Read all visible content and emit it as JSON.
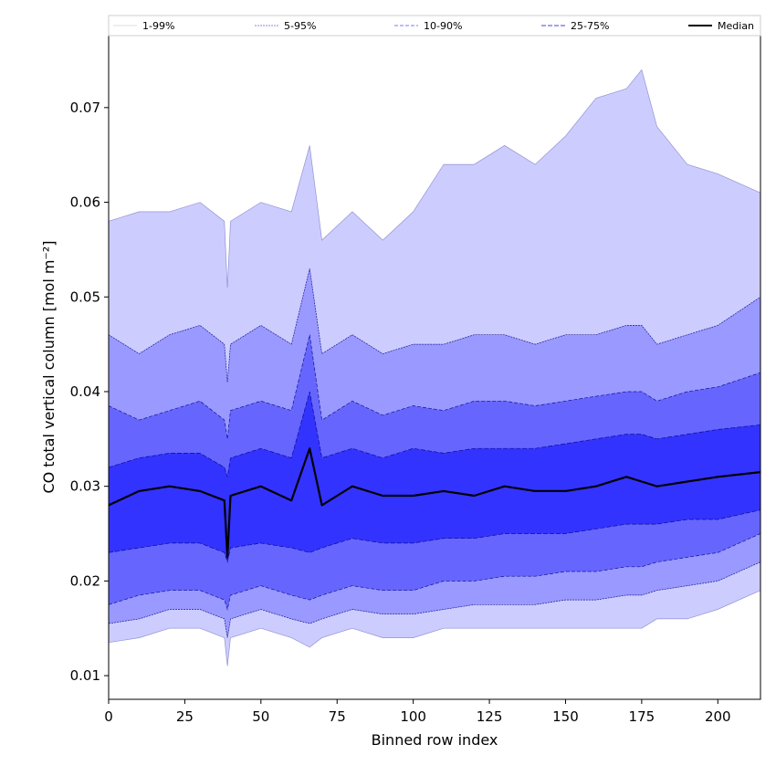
{
  "chart_data": {
    "type": "area",
    "title": "",
    "xlabel": "Binned row index",
    "ylabel": "CO total vertical column [mol m⁻²]",
    "xlim": [
      0,
      214
    ],
    "ylim": [
      0.0075,
      0.0777
    ],
    "x_ticks": [
      0,
      25,
      50,
      75,
      100,
      125,
      150,
      175,
      200
    ],
    "y_ticks": [
      0.01,
      0.02,
      0.03,
      0.04,
      0.05,
      0.06,
      0.07
    ],
    "x_tick_labels": [
      "0",
      "25",
      "50",
      "75",
      "100",
      "125",
      "150",
      "175",
      "200"
    ],
    "y_tick_labels": [
      "0.01",
      "0.02",
      "0.03",
      "0.04",
      "0.05",
      "0.06",
      "0.07"
    ],
    "grid": false,
    "legend_position": "top, above plot",
    "x_knots": [
      0,
      10,
      20,
      30,
      38,
      39,
      40,
      50,
      60,
      66,
      70,
      80,
      90,
      100,
      110,
      120,
      130,
      140,
      150,
      160,
      170,
      175,
      180,
      190,
      200,
      214
    ],
    "bands": [
      {
        "name": "1-99%",
        "color": "#ccccff",
        "line_color": "#000080",
        "lower": [
          0.0135,
          0.014,
          0.015,
          0.015,
          0.014,
          0.011,
          0.014,
          0.015,
          0.014,
          0.013,
          0.014,
          0.015,
          0.014,
          0.014,
          0.015,
          0.015,
          0.015,
          0.015,
          0.015,
          0.015,
          0.015,
          0.015,
          0.016,
          0.016,
          0.017,
          0.019
        ],
        "upper": [
          0.058,
          0.059,
          0.059,
          0.06,
          0.058,
          0.051,
          0.058,
          0.06,
          0.059,
          0.066,
          0.056,
          0.059,
          0.056,
          0.059,
          0.064,
          0.064,
          0.066,
          0.064,
          0.067,
          0.071,
          0.072,
          0.074,
          0.068,
          0.064,
          0.063,
          0.061
        ]
      },
      {
        "name": "5-95%",
        "color": "#9999ff",
        "line_color": "#000080",
        "lower": [
          0.0155,
          0.016,
          0.017,
          0.017,
          0.016,
          0.014,
          0.016,
          0.017,
          0.016,
          0.0155,
          0.016,
          0.017,
          0.0165,
          0.0165,
          0.017,
          0.0175,
          0.0175,
          0.0175,
          0.018,
          0.018,
          0.0185,
          0.0185,
          0.019,
          0.0195,
          0.02,
          0.022
        ],
        "upper": [
          0.046,
          0.044,
          0.046,
          0.047,
          0.045,
          0.041,
          0.045,
          0.047,
          0.045,
          0.053,
          0.044,
          0.046,
          0.044,
          0.045,
          0.045,
          0.046,
          0.046,
          0.045,
          0.046,
          0.046,
          0.047,
          0.047,
          0.045,
          0.046,
          0.047,
          0.05
        ]
      },
      {
        "name": "10-90%",
        "color": "#6666ff",
        "line_color": "#000080",
        "lower": [
          0.0175,
          0.0185,
          0.019,
          0.019,
          0.018,
          0.017,
          0.0185,
          0.0195,
          0.0185,
          0.018,
          0.0185,
          0.0195,
          0.019,
          0.019,
          0.02,
          0.02,
          0.0205,
          0.0205,
          0.021,
          0.021,
          0.0215,
          0.0215,
          0.022,
          0.0225,
          0.023,
          0.025
        ],
        "upper": [
          0.0385,
          0.037,
          0.038,
          0.039,
          0.037,
          0.035,
          0.038,
          0.039,
          0.038,
          0.046,
          0.037,
          0.039,
          0.0375,
          0.0385,
          0.038,
          0.039,
          0.039,
          0.0385,
          0.039,
          0.0395,
          0.04,
          0.04,
          0.039,
          0.04,
          0.0405,
          0.042
        ]
      },
      {
        "name": "25-75%",
        "color": "#3333ff",
        "line_color": "#000080",
        "lower": [
          0.023,
          0.0235,
          0.024,
          0.024,
          0.023,
          0.022,
          0.0235,
          0.024,
          0.0235,
          0.023,
          0.0235,
          0.0245,
          0.024,
          0.024,
          0.0245,
          0.0245,
          0.025,
          0.025,
          0.025,
          0.0255,
          0.026,
          0.026,
          0.026,
          0.0265,
          0.0265,
          0.0275
        ],
        "upper": [
          0.032,
          0.033,
          0.0335,
          0.0335,
          0.032,
          0.031,
          0.033,
          0.034,
          0.033,
          0.04,
          0.033,
          0.034,
          0.033,
          0.034,
          0.0335,
          0.034,
          0.034,
          0.034,
          0.0345,
          0.035,
          0.0355,
          0.0355,
          0.035,
          0.0355,
          0.036,
          0.0365
        ]
      }
    ],
    "median": {
      "name": "Median",
      "color": "#000000",
      "values": [
        0.028,
        0.0295,
        0.03,
        0.0295,
        0.0285,
        0.0225,
        0.029,
        0.03,
        0.0285,
        0.034,
        0.028,
        0.03,
        0.029,
        0.029,
        0.0295,
        0.029,
        0.03,
        0.0295,
        0.0295,
        0.03,
        0.031,
        0.0305,
        0.03,
        0.0305,
        0.031,
        0.0315
      ]
    },
    "legend": [
      "1-99%",
      "5-95%",
      "10-90%",
      "25-75%",
      "Median"
    ]
  }
}
